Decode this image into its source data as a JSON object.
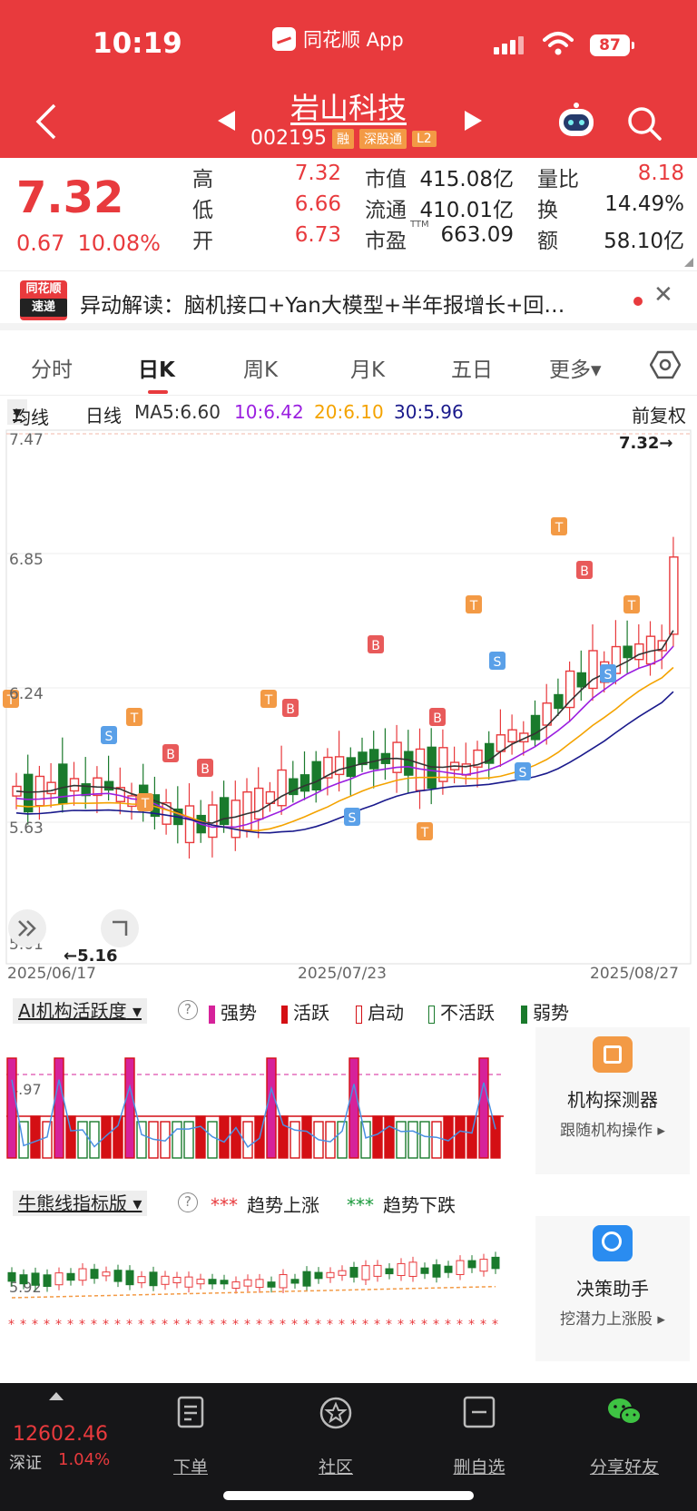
{
  "status": {
    "time": "10:19",
    "app_name": "同花顺 App",
    "battery": "87"
  },
  "stock": {
    "name": "岩山科技",
    "code": "002195",
    "tags": [
      "融",
      "深股通",
      "L2"
    ]
  },
  "quote": {
    "price": "7.32",
    "change": "0.67",
    "change_pct": "10.08%",
    "fields": [
      {
        "label": "高",
        "value": "7.32"
      },
      {
        "label": "低",
        "value": "6.66"
      },
      {
        "label": "开",
        "value": "6.73"
      },
      {
        "label": "市值",
        "value": "415.08亿"
      },
      {
        "label": "流通",
        "value": "410.01亿"
      },
      {
        "label": "市盈",
        "value": "663.09"
      },
      {
        "label": "量比",
        "value": "8.18"
      },
      {
        "label": "换",
        "value": "14.49%"
      },
      {
        "label": "额",
        "value": "58.10亿"
      }
    ],
    "ttm": "TTM"
  },
  "news": {
    "logo_top": "同花顺",
    "logo_bottom": "速递",
    "text": "异动解读：脑机接口+Yan大模型+半年报增长+回…"
  },
  "tabs": [
    "分时",
    "日K",
    "周K",
    "月K",
    "五日",
    "更多▾"
  ],
  "ma": {
    "selector": "均线",
    "line_type": "日线",
    "ma5": "MA5:6.60",
    "ma10": "10:6.42",
    "ma20": "20:6.10",
    "ma30": "30:5.96",
    "adjust": "前复权"
  },
  "kline": {
    "y_labels": [
      "7.47",
      "6.85",
      "6.24",
      "5.63",
      "5.01"
    ],
    "dates": [
      "2025/06/17",
      "2025/07/23",
      "2025/08/27"
    ],
    "max_label": "7.32→",
    "min_label": "←5.16"
  },
  "ai_panel": {
    "selector": "AI机构活跃度",
    "legend": [
      "强势",
      "活跃",
      "启动",
      "不活跃",
      "弱势"
    ],
    "value_label": "4.97",
    "card_title": "机构探测器",
    "card_sub": "跟随机构操作 ▸"
  },
  "bull_panel": {
    "selector": "牛熊线指标版",
    "legend_up": "趋势上涨",
    "legend_down": "趋势下跌",
    "value_label": "5.92",
    "card_title": "决策助手",
    "card_sub": "挖潜力上涨股 ▸"
  },
  "bottom_nav": {
    "index_value": "12602.46",
    "index_name": "深证",
    "index_pct": "1.04%",
    "items": [
      "下单",
      "社区",
      "删自选",
      "分享好友"
    ]
  },
  "colors": {
    "brand_red": "#e83a3d",
    "down_green": "#1a7a2c",
    "ma5": "#333333",
    "ma10": "#9b1fe0",
    "ma20": "#f4a300",
    "ma30": "#1a1a8c"
  }
}
